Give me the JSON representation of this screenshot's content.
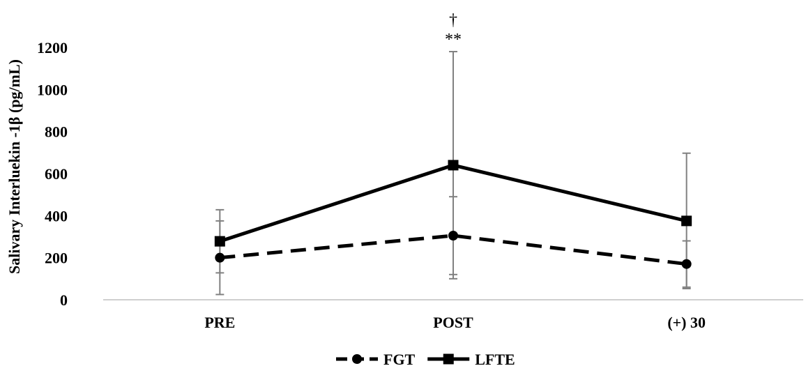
{
  "chart_data": {
    "type": "line",
    "title": "",
    "xlabel": "",
    "ylabel": "Salivary Interluekin -1β (pg/mL)",
    "categories": [
      "PRE",
      "POST",
      "(+) 30"
    ],
    "ylim": [
      0,
      1200
    ],
    "yticks": [
      0,
      200,
      400,
      600,
      800,
      1000,
      1200
    ],
    "grid": false,
    "legend_position": "bottom",
    "series": [
      {
        "name": "FGT",
        "values": [
          200,
          305,
          170
        ],
        "error": [
          175,
          185,
          110
        ],
        "style": "dashed",
        "marker": "circle",
        "color": "#000000"
      },
      {
        "name": "LFTE",
        "values": [
          278,
          640,
          375
        ],
        "error": [
          150,
          540,
          322
        ],
        "style": "solid",
        "marker": "square",
        "color": "#000000"
      }
    ],
    "annotations": [
      {
        "category": "POST",
        "text": "†"
      },
      {
        "category": "POST",
        "text": "**"
      }
    ],
    "errorbar_color": "#808080"
  }
}
